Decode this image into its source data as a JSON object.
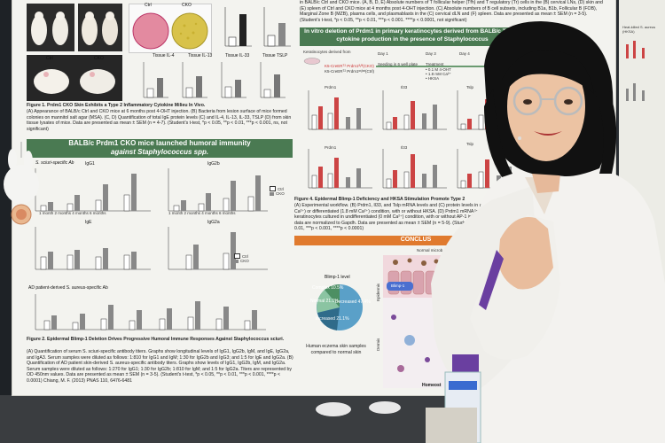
{
  "poster": {
    "top_text_right": "regulatory (Tr) cells in the (B) cervical LNs, (D) skin and (E) spleen of Ctrl and CKO mice at 4 months post 4-OHT injection. (C) Absolute numbers of B cell subsets, including B1a, B1b, Follicular B (FOB), Marginal Zone B (MZB), plasma cells, and plasmablasts in the (C) cervical dLN and (F) spleen. Data are presented as mean ± SEM (n = 3-5). (Student's t-test, *p < 0.05, **p < 0.01, ***p < 0.001. ****p < 0.0001, not significant)",
    "top_text_right_head": "in BALB/c Ctrl and CKO mice. (A, B, D, E) Absolute numbers of T follicular helper (Tfh) and T",
    "fig1_caption_title": "Figure 1. Prdm1 CKO Skin Exhibits a Type 2 Inflammatory Cytokine Milieu In Vivo.",
    "fig1_caption": "(A) Appearance of BALB/c Ctrl and CKO mice at 6 months post 4-OHT injection. (B) Bacteria from lesion surface of mice formed colonies on mannitol salt agar (MSA). (C, D) Quantification of total IgE protein levels (C) and IL-4, IL-13, IL-33, TSLP (D) from skin tissue lysates of mice. Data are presented as mean ± SEM (n = 4-7). (Student's t-test, *p < 0.05, **p < 0.01, ***p < 0.001, ns, not significant)",
    "panel_a_labels": [
      "Ctrl",
      "CKO"
    ],
    "panel_b_labels": [
      "Ctrl",
      "CKO"
    ],
    "panel_d_titles": [
      "Tissue IL-4",
      "Tissue IL-13",
      "Tissue IL-33",
      "Tissue TSLP"
    ],
    "section2_title_line1": "BALB/c Prdm1 CKO mice launched humoral immunity",
    "section2_title_line2": "against Staphylococcus spp.",
    "panel2a_title": "S. sciuri-specific Ab",
    "panel2a_subtitles": [
      "IgG1",
      "IgG2b",
      "IgE",
      "IgG2a"
    ],
    "panel2_timepoints": "1 month  2 months  4 months  6 months",
    "legend_ctrl": "Ctrl",
    "legend_cko": "CKO",
    "panel2b_title": "AD patient-derived S. aureus-specific Ab",
    "fig2_caption_title": "Figure 2. Epidermal Blimp-1 Deletion Drives Progressive Humoral Immune Responses Against Staphylococcus sciuri.",
    "fig2_caption": "(A) Quantification of serum S. sciuri-specific antibody titers. Graphs show longitudinal levels of IgG1, IgG2b, IgM, and IgE, IgG2a, and IgA3. Serum samples were diluted as follows: 1:810 for IgG1 and IgM; 1:30 for IgG2b and IgG3; and 1:5 for IgE and IgG2a. (B) Quantification of AD patient skin-derived S. aureus-specific antibody titers. Graphs show levels of IgG1, IgG2b, IgM, and IgG2a. Serum samples were diluted as follows: 1:270 for IgG1; 1:30 for IgG2b; 1:810 for IgM; and 1:5 for IgG2a. Titers are represented by OD 450nm values. Data are presented as mean ± SEM (n = 3-5). (Student's t-test, *p < 0.05, **p < 0.01, ***p < 0.001, ****p < 0.0001) Chiang, M. F. (2013) PNAS 110, 6476-6481",
    "section4_band": "In vitro deletion of Prdm1 in primary keratinocytes derived from BALB/c Type 2 cytokine production in the presence of Staphylococcus",
    "keratinocytes_label": "Keratinocytes derived from",
    "strain1": "K5-CreERᵀ² Prdm1ᶠˡ/ᶠˡ(CKO)",
    "strain2": "K5-CreERᵀ² Prdm1ʷᵗ/ʷᵗ(Ctrl)",
    "day_labels": [
      "Day 1",
      "Day 3",
      "Day 4",
      "Day 5"
    ],
    "seeding_label": "Seeding in 6 well plate",
    "treatment_label": "Treatment",
    "treatment_detail": "• 0.1 M 4-OHT\n• 1.8 mM Ca²⁺\n• HKSA",
    "assay_label": "mRNA expression\nELISA",
    "gene_labels": [
      "Prdm1",
      "Il33",
      "Tslp",
      "Prdm1",
      "Il33",
      "Tslp"
    ],
    "fig4_caption_title": "Figure 4. Epidermal Blimp-1 Deficiency and HKSA Stimulation Promote Type 2",
    "fig4_caption": "(A) Experimental workflow. (B) Prdm1, Il33, and Tslp mRNA levels and (C) protein levels in undifferentiated (0 mM Ca²⁺) or differentiated (1.8 mM Ca²⁺) condition, with or without HKSA. (D) Prdm1 mRNA levels in Ctrl and CKO keratinocytes cultured in undifferentiated (0 mM Ca²⁺) condition, with or without AP-1 inhibitor (T5224). All mRNA data are normalized to Gapdh. Data are presented as mean ± SEM (n = 5-9). (Student's t-test, *p < 0.05, **p < 0.01, ***p < 0.001, ****p < 0.0001)",
    "conclusion_band": "CONCLUS",
    "pie_title": "Blimp-1 level",
    "pie_labels": [
      "Complex 10.5%",
      "Normal 21.1%",
      "Increased 21.1%",
      "Decreased 47.4%"
    ],
    "human_caption": "Human eczema skin samples\ncompared to normal skin",
    "normal_microbe": "Normal microb",
    "epidermis_label": "Epidermis",
    "dermis_label": "Dermis",
    "blimp_label": "Blimp-1",
    "homeostasis_label": "Homeost",
    "right_strip": "Heat-killed S. aureus (HKSA)"
  },
  "colors": {
    "band_green": "#4a7a52",
    "band_orange": "#e07a2e",
    "pie_complex": "#4d8f63",
    "pie_normal": "#8bc4a2",
    "pie_increased": "#2f6b8a",
    "pie_decreased": "#5aa0c8",
    "lanyard": "#6a3fa0"
  }
}
